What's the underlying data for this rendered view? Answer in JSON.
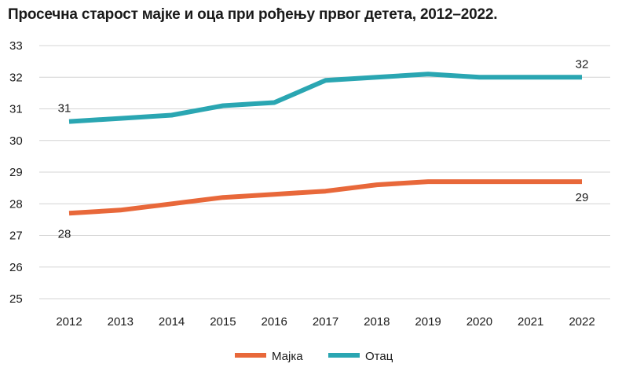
{
  "chart_data": {
    "type": "line",
    "title": "Просечна старост мајке и оца при рођењу првог детета, 2012–2022.",
    "xlabel": "",
    "ylabel": "",
    "ylim": [
      25,
      33
    ],
    "yticks": [
      "25",
      "26",
      "27",
      "28",
      "29",
      "30",
      "31",
      "32",
      "33"
    ],
    "categories": [
      "2012",
      "2013",
      "2014",
      "2015",
      "2016",
      "2017",
      "2018",
      "2019",
      "2020",
      "2021",
      "2022"
    ],
    "grid": true,
    "legend_position": "bottom",
    "series": [
      {
        "name": "Мајка",
        "color": "#e8683a",
        "values": [
          27.7,
          27.8,
          28.0,
          28.2,
          28.3,
          28.4,
          28.6,
          28.7,
          28.7,
          28.7,
          28.7
        ],
        "data_labels": [
          {
            "index": 0,
            "text": "28"
          },
          {
            "index": 10,
            "text": "29"
          }
        ]
      },
      {
        "name": "Отац",
        "color": "#2aa6b2",
        "values": [
          30.6,
          30.7,
          30.8,
          31.1,
          31.2,
          31.9,
          32.0,
          32.1,
          32.0,
          32.0,
          32.0
        ],
        "data_labels": [
          {
            "index": 0,
            "text": "31"
          },
          {
            "index": 10,
            "text": "32"
          }
        ]
      }
    ]
  }
}
